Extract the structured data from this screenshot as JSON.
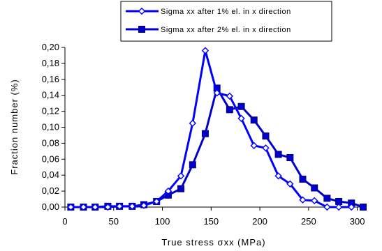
{
  "chart_data": {
    "type": "line",
    "xlabel": "True stress σxx (MPa)",
    "ylabel": "Fraction number (%)",
    "xlim": [
      0,
      300
    ],
    "ylim": [
      0,
      0.2
    ],
    "x_ticks": [
      "0",
      "50",
      "100",
      "150",
      "200",
      "250",
      "300"
    ],
    "y_ticks": [
      "0,00",
      "0,02",
      "0,04",
      "0,06",
      "0,08",
      "0,10",
      "0,12",
      "0,14",
      "0,16",
      "0,18",
      "0,20"
    ],
    "grid": "none",
    "legend_position": "top",
    "series": [
      {
        "name": "Sigma xx after 1% el. in x direction",
        "marker": "open-diamond",
        "color": "#0000ff",
        "x": [
          6,
          19,
          31,
          44,
          56,
          69,
          81,
          94,
          106,
          119,
          131,
          144,
          156,
          169,
          181,
          194,
          206,
          219,
          231,
          244,
          256,
          269,
          281,
          294
        ],
        "y": [
          0.0,
          0.0,
          0.0,
          0.0,
          0.001,
          0.001,
          0.002,
          0.007,
          0.02,
          0.039,
          0.105,
          0.196,
          0.143,
          0.139,
          0.111,
          0.077,
          0.074,
          0.039,
          0.029,
          0.009,
          0.008,
          0.0,
          0.0,
          0.0
        ]
      },
      {
        "name": "Sigma xx after 2% el. in x direction",
        "marker": "filled-square",
        "color": "#0000cc",
        "x": [
          6,
          19,
          31,
          44,
          56,
          69,
          81,
          94,
          106,
          119,
          131,
          144,
          156,
          169,
          181,
          194,
          206,
          219,
          231,
          244,
          256,
          269,
          281,
          294,
          306
        ],
        "y": [
          0.0,
          0.0,
          0.0,
          0.001,
          0.001,
          0.001,
          0.003,
          0.007,
          0.015,
          0.023,
          0.053,
          0.092,
          0.149,
          0.122,
          0.126,
          0.109,
          0.089,
          0.066,
          0.062,
          0.035,
          0.024,
          0.011,
          0.007,
          0.005,
          0.0
        ]
      }
    ]
  }
}
